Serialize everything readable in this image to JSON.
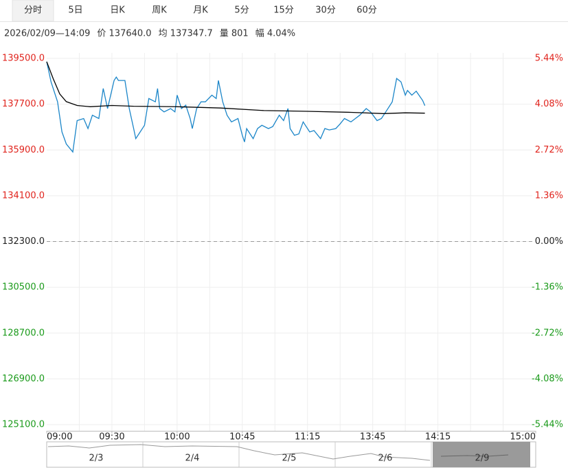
{
  "tabs": [
    "分时",
    "5日",
    "日K",
    "周K",
    "月K",
    "5分",
    "15分",
    "30分",
    "60分"
  ],
  "info": [
    "2026/02/09—14:09",
    "价 137640.0",
    "均 137347.7",
    "量 801",
    "幅 4.04%"
  ],
  "navigator": [
    "2/3",
    "2/4",
    "2/5",
    "2/6",
    "2/9"
  ],
  "chart_data": {
    "type": "line",
    "xlim": [
      0,
      225
    ],
    "xticks": [
      {
        "value": 0,
        "label": "09:00"
      },
      {
        "value": 30,
        "label": "09:30"
      },
      {
        "value": 60,
        "label": "10:00"
      },
      {
        "value": 90,
        "label": "10:45"
      },
      {
        "value": 120,
        "label": "11:15"
      },
      {
        "value": 150,
        "label": "13:45"
      },
      {
        "value": 180,
        "label": "14:15"
      },
      {
        "value": 225,
        "label": "15:00"
      }
    ],
    "ylim": [
      125100,
      139500
    ],
    "yticks": [
      {
        "value": 139500,
        "label": "139500.0"
      },
      {
        "value": 137700,
        "label": "137700.0"
      },
      {
        "value": 135900,
        "label": "135900.0"
      },
      {
        "value": 134100,
        "label": "134100.0"
      },
      {
        "value": 132300,
        "label": "132300.0"
      },
      {
        "value": 130500,
        "label": "130500.0"
      },
      {
        "value": 128700,
        "label": "128700.0"
      },
      {
        "value": 126900,
        "label": "126900.0"
      },
      {
        "value": 125100,
        "label": "125100.0"
      }
    ],
    "y2lim": [
      -5.44,
      5.44
    ],
    "y2ticks": [
      {
        "value": 5.44,
        "label": "5.44%"
      },
      {
        "value": 4.08,
        "label": "4.08%"
      },
      {
        "value": 2.72,
        "label": "2.72%"
      },
      {
        "value": 1.36,
        "label": "1.36%"
      },
      {
        "value": 0,
        "label": "0.00%"
      },
      {
        "value": -1.36,
        "label": "-1.36%"
      },
      {
        "value": -2.72,
        "label": "-2.72%"
      },
      {
        "value": -4.08,
        "label": "-4.08%"
      },
      {
        "value": -5.44,
        "label": "-5.44%"
      }
    ],
    "grid": true,
    "series": [
      {
        "color": "#1a85c8",
        "x": [
          0,
          2,
          5,
          7,
          9,
          12,
          14,
          17,
          19,
          21,
          24,
          26,
          28,
          31,
          32,
          33,
          36,
          38,
          40,
          41,
          43,
          45,
          47,
          50,
          51,
          52,
          54,
          57,
          59,
          60,
          62,
          64,
          66,
          67,
          69,
          71,
          73,
          76,
          78,
          79,
          81,
          83,
          85,
          88,
          90,
          91,
          92,
          95,
          97,
          99,
          102,
          104,
          107,
          109,
          111,
          112,
          114,
          116,
          118,
          121,
          123,
          126,
          128,
          130,
          133,
          135,
          137,
          140,
          142,
          144,
          147,
          149,
          152,
          154,
          156,
          159,
          161,
          163,
          165,
          166,
          168,
          170,
          173,
          174
        ],
        "values": [
          139369,
          138580,
          137792,
          136609,
          136136,
          135821,
          137056,
          137135,
          136741,
          137266,
          137135,
          138317,
          137529,
          138633,
          138764,
          138633,
          138633,
          137529,
          136741,
          136346,
          136609,
          136872,
          137923,
          137792,
          138317,
          137529,
          137398,
          137529,
          137398,
          138054,
          137529,
          137660,
          137135,
          136741,
          137529,
          137792,
          137792,
          138054,
          137923,
          138633,
          137792,
          137266,
          137003,
          137135,
          136478,
          136215,
          136741,
          136346,
          136741,
          136872,
          136741,
          136820,
          137266,
          137056,
          137529,
          136741,
          136478,
          136530,
          137003,
          136609,
          136662,
          136346,
          136741,
          136688,
          136741,
          136925,
          137135,
          137003,
          137135,
          137266,
          137529,
          137398,
          137056,
          137135,
          137398,
          137792,
          138712,
          138580,
          138054,
          138239,
          138054,
          138212,
          137844,
          137640
        ]
      },
      {
        "color": "#000000",
        "x": [
          0,
          3,
          6,
          9,
          14,
          20,
          30,
          40,
          60,
          80,
          100,
          120,
          140,
          155,
          165,
          174
        ],
        "values": [
          139369,
          138700,
          138100,
          137800,
          137650,
          137600,
          137650,
          137620,
          137600,
          137550,
          137450,
          137420,
          137380,
          137330,
          137360,
          137348
        ]
      }
    ]
  }
}
